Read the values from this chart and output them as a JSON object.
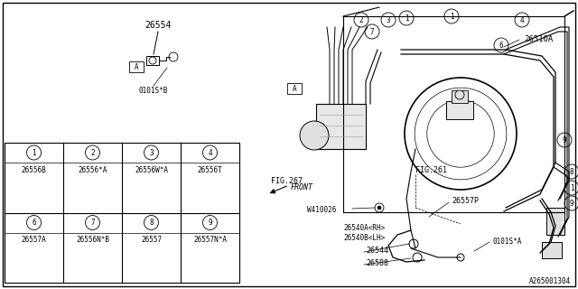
{
  "bg_color": "#ffffff",
  "part_number_code": "A265001304",
  "table": {
    "cells": [
      {
        "row": 0,
        "col": 0,
        "num": "1",
        "part": "26556B"
      },
      {
        "row": 0,
        "col": 1,
        "num": "2",
        "part": "26556*A"
      },
      {
        "row": 0,
        "col": 2,
        "num": "3",
        "part": "26556W*A"
      },
      {
        "row": 0,
        "col": 3,
        "num": "4",
        "part": "26556T"
      },
      {
        "row": 1,
        "col": 0,
        "num": "6",
        "part": "26557A"
      },
      {
        "row": 1,
        "col": 1,
        "num": "7",
        "part": "26556N*B"
      },
      {
        "row": 1,
        "col": 2,
        "num": "8",
        "part": "26557"
      },
      {
        "row": 1,
        "col": 3,
        "num": "9",
        "part": "26557N*A"
      }
    ]
  },
  "line_color": "#000000",
  "text_color": "#000000",
  "gray_color": "#888888"
}
